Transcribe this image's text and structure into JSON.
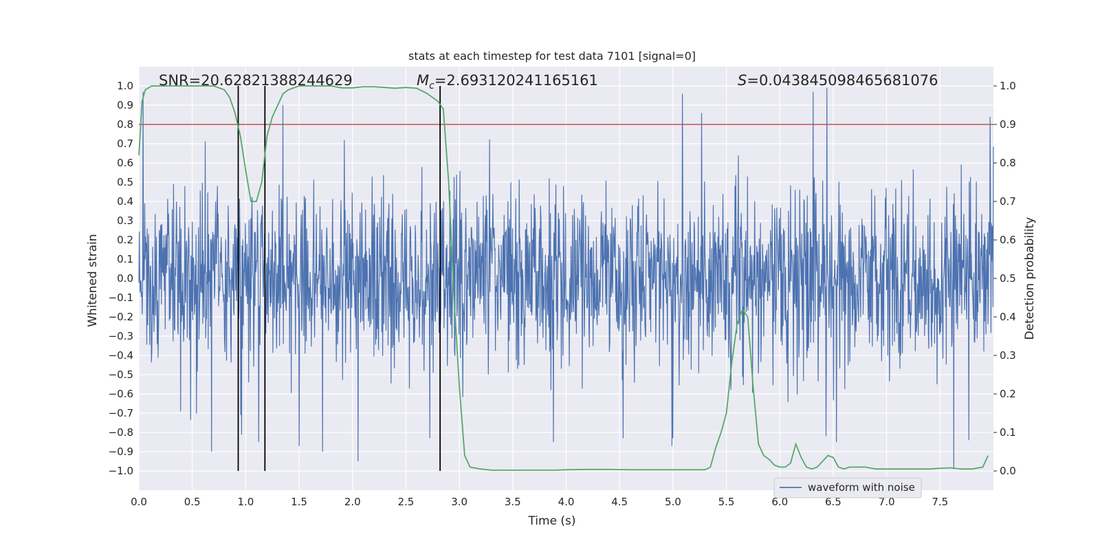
{
  "chart_data": {
    "type": "line",
    "title": "stats at each timestep for test data 7101 [signal=0]",
    "xlabel": "Time (s)",
    "ylabel": "Whitened strain",
    "y2label": "Detection probability",
    "xlim": [
      0.0,
      8.0
    ],
    "ylim": [
      -1.1,
      1.1
    ],
    "y2lim": [
      -0.05,
      1.05
    ],
    "xticks": [
      0.0,
      0.5,
      1.0,
      1.5,
      2.0,
      2.5,
      3.0,
      3.5,
      4.0,
      4.5,
      5.0,
      5.5,
      6.0,
      6.5,
      7.0,
      7.5
    ],
    "yticks": [
      -1.0,
      -0.9,
      -0.8,
      -0.7,
      -0.6,
      -0.5,
      -0.4,
      -0.3,
      -0.2,
      -0.1,
      0.0,
      0.1,
      0.2,
      0.3,
      0.4,
      0.5,
      0.6,
      0.7,
      0.8,
      0.9,
      1.0
    ],
    "y2ticks": [
      0.0,
      0.1,
      0.2,
      0.3,
      0.4,
      0.5,
      0.6,
      0.7,
      0.8,
      0.9,
      1.0
    ],
    "grid": true,
    "legend": {
      "entries": [
        "waveform with noise"
      ],
      "placement": "lower-right"
    },
    "annotations": {
      "snr": "SNR=20.62821388244629",
      "mc_symbol": "M",
      "mc_sub": "c",
      "mc_value": "=2.693120241165161",
      "s_symbol": "S",
      "s_value": "=0.043845098465681076"
    },
    "threshold_line": {
      "y": 0.8,
      "color": "#c44e52"
    },
    "vertical_lines": {
      "x": [
        0.93,
        1.18,
        2.82
      ],
      "ymin": -1.0,
      "ymax": 1.0,
      "color": "#000000"
    },
    "series": [
      {
        "name": "waveform with noise",
        "axis": "left",
        "color": "#4c72b0",
        "generated_noise": {
          "seed": 7101,
          "samples": 2048,
          "band": 0.4,
          "peaks": [
            {
              "x": 0.04,
              "y": 0.97
            },
            {
              "x": 0.68,
              "y": -0.9
            },
            {
              "x": 1.12,
              "y": -0.85
            },
            {
              "x": 1.35,
              "y": 0.9
            },
            {
              "x": 1.5,
              "y": -0.87
            },
            {
              "x": 1.72,
              "y": -0.9
            },
            {
              "x": 2.05,
              "y": -0.95
            },
            {
              "x": 3.88,
              "y": -0.85
            },
            {
              "x": 4.99,
              "y": -0.87
            },
            {
              "x": 5.09,
              "y": 0.96
            },
            {
              "x": 5.27,
              "y": 0.86
            },
            {
              "x": 6.31,
              "y": 0.97
            },
            {
              "x": 6.44,
              "y": 0.99
            },
            {
              "x": 6.53,
              "y": -0.85
            },
            {
              "x": 7.63,
              "y": -0.99
            },
            {
              "x": 7.77,
              "y": -0.84
            },
            {
              "x": 7.97,
              "y": 0.84
            }
          ]
        }
      },
      {
        "name": "",
        "axis": "right",
        "color": "#55a868",
        "x": [
          0.0,
          0.03,
          0.06,
          0.12,
          0.2,
          0.3,
          0.4,
          0.5,
          0.6,
          0.7,
          0.8,
          0.85,
          0.9,
          0.95,
          1.0,
          1.05,
          1.1,
          1.15,
          1.2,
          1.25,
          1.3,
          1.35,
          1.4,
          1.5,
          1.6,
          1.7,
          1.8,
          1.9,
          2.0,
          2.1,
          2.2,
          2.3,
          2.4,
          2.5,
          2.6,
          2.7,
          2.75,
          2.8,
          2.85,
          2.9,
          2.95,
          3.0,
          3.05,
          3.1,
          3.2,
          3.3,
          3.5,
          3.7,
          3.9,
          4.0,
          4.2,
          4.4,
          4.6,
          4.8,
          5.0,
          5.2,
          5.3,
          5.35,
          5.4,
          5.45,
          5.5,
          5.55,
          5.6,
          5.65,
          5.7,
          5.75,
          5.8,
          5.85,
          5.9,
          5.95,
          6.0,
          6.05,
          6.1,
          6.15,
          6.2,
          6.25,
          6.3,
          6.35,
          6.4,
          6.45,
          6.5,
          6.55,
          6.6,
          6.65,
          6.7,
          6.8,
          6.9,
          7.0,
          7.1,
          7.2,
          7.3,
          7.4,
          7.5,
          7.6,
          7.7,
          7.8,
          7.9,
          7.95
        ],
        "y": [
          0.82,
          0.96,
          0.99,
          1.0,
          1.0,
          1.0,
          1.0,
          1.0,
          1.0,
          1.0,
          0.99,
          0.97,
          0.93,
          0.87,
          0.78,
          0.7,
          0.7,
          0.75,
          0.87,
          0.92,
          0.95,
          0.98,
          0.99,
          1.0,
          1.0,
          1.0,
          1.0,
          0.995,
          0.995,
          0.998,
          0.998,
          0.996,
          0.994,
          0.996,
          0.994,
          0.98,
          0.97,
          0.96,
          0.94,
          0.75,
          0.45,
          0.22,
          0.04,
          0.01,
          0.005,
          0.002,
          0.002,
          0.002,
          0.002,
          0.003,
          0.004,
          0.004,
          0.003,
          0.003,
          0.003,
          0.003,
          0.003,
          0.01,
          0.06,
          0.1,
          0.15,
          0.28,
          0.38,
          0.42,
          0.4,
          0.22,
          0.07,
          0.04,
          0.03,
          0.015,
          0.01,
          0.01,
          0.02,
          0.07,
          0.035,
          0.01,
          0.005,
          0.01,
          0.025,
          0.04,
          0.035,
          0.01,
          0.005,
          0.01,
          0.01,
          0.01,
          0.005,
          0.005,
          0.005,
          0.005,
          0.005,
          0.005,
          0.007,
          0.008,
          0.005,
          0.005,
          0.01,
          0.04
        ]
      }
    ]
  },
  "colors": {
    "axes_bg": "#eaeaf2",
    "grid": "#ffffff",
    "text": "#262626"
  }
}
